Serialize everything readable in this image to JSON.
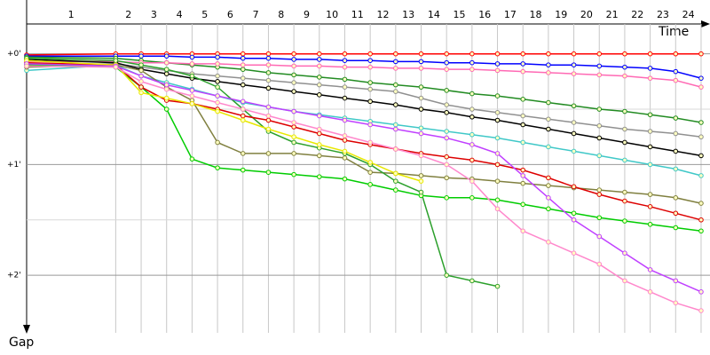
{
  "chart_data": {
    "type": "line",
    "x_label": "Time",
    "y_label": "Gap",
    "lap_labels": [
      1,
      2,
      3,
      4,
      5,
      6,
      7,
      8,
      9,
      10,
      11,
      12,
      13,
      14,
      15,
      16,
      17,
      18,
      19,
      20,
      21,
      22,
      23,
      24
    ],
    "x": [
      -2.5,
      1,
      2,
      3,
      4,
      5,
      6,
      7,
      8,
      9,
      10,
      11,
      12,
      13,
      14,
      15,
      16,
      17,
      18,
      19,
      20,
      21,
      22,
      23,
      24
    ],
    "xlim": [
      -2.5,
      24.35
    ],
    "xticks": [
      1,
      2,
      3,
      4,
      5,
      6,
      7,
      8,
      9,
      10,
      11,
      12,
      13,
      14,
      15,
      16,
      17,
      18,
      19,
      20,
      21,
      22,
      23,
      24
    ],
    "ylim": [
      -0.27,
      2.52
    ],
    "yticks": [
      {
        "value": 0,
        "label": "+0'"
      },
      {
        "value": 1,
        "label": "+1'"
      },
      {
        "value": 2,
        "label": "+2'"
      }
    ],
    "minor_yticks": [
      0.5,
      1.5
    ],
    "grid": true,
    "series": [
      {
        "color": "#ff0000",
        "values": [
          0.01,
          0,
          0,
          0,
          0,
          0,
          0,
          0,
          0,
          0,
          0,
          0,
          0,
          0,
          0,
          0,
          0,
          0,
          0,
          0,
          0,
          0,
          0,
          0,
          0
        ]
      },
      {
        "color": "#0000ff",
        "values": [
          0.02,
          0.02,
          0.02,
          0.02,
          0.03,
          0.03,
          0.04,
          0.04,
          0.05,
          0.05,
          0.06,
          0.06,
          0.07,
          0.07,
          0.08,
          0.08,
          0.09,
          0.09,
          0.1,
          0.1,
          0.11,
          0.12,
          0.13,
          0.16,
          0.22
        ]
      },
      {
        "color": "#228b22",
        "values": [
          0.03,
          0.04,
          0.06,
          0.08,
          0.1,
          0.12,
          0.14,
          0.17,
          0.19,
          0.21,
          0.23,
          0.26,
          0.28,
          0.3,
          0.33,
          0.36,
          0.38,
          0.41,
          0.44,
          0.47,
          0.5,
          0.52,
          0.55,
          0.58,
          0.62
        ]
      },
      {
        "color": "#ff69b4",
        "values": [
          0.07,
          0.07,
          0.08,
          0.08,
          0.09,
          0.09,
          0.1,
          0.1,
          0.11,
          0.11,
          0.12,
          0.12,
          0.13,
          0.13,
          0.14,
          0.14,
          0.15,
          0.16,
          0.17,
          0.18,
          0.19,
          0.2,
          0.22,
          0.24,
          0.3
        ]
      },
      {
        "color": "#909090",
        "values": [
          0.1,
          0.09,
          0.12,
          0.15,
          0.18,
          0.2,
          0.22,
          0.24,
          0.26,
          0.28,
          0.3,
          0.32,
          0.34,
          0.4,
          0.46,
          0.5,
          0.53,
          0.56,
          0.59,
          0.62,
          0.65,
          0.68,
          0.7,
          0.72,
          0.75
        ]
      },
      {
        "color": "#000000",
        "values": [
          0.05,
          0.08,
          0.14,
          0.18,
          0.22,
          0.25,
          0.28,
          0.31,
          0.34,
          0.37,
          0.4,
          0.43,
          0.46,
          0.5,
          0.53,
          0.57,
          0.6,
          0.64,
          0.68,
          0.72,
          0.76,
          0.8,
          0.84,
          0.88,
          0.92
        ]
      },
      {
        "color": "#40c8c8",
        "values": [
          0.15,
          0.1,
          0.2,
          0.26,
          0.32,
          0.38,
          0.44,
          0.48,
          0.52,
          0.55,
          0.58,
          0.61,
          0.64,
          0.67,
          0.7,
          0.73,
          0.76,
          0.8,
          0.84,
          0.88,
          0.92,
          0.96,
          1.0,
          1.04,
          1.1
        ]
      },
      {
        "color": "#808040",
        "values": [
          0.12,
          0.1,
          0.15,
          0.3,
          0.42,
          0.8,
          0.9,
          0.9,
          0.9,
          0.92,
          0.94,
          1.07,
          1.08,
          1.1,
          1.12,
          1.13,
          1.15,
          1.17,
          1.19,
          1.21,
          1.23,
          1.25,
          1.27,
          1.3,
          1.35
        ]
      },
      {
        "color": "#00cc00",
        "values": [
          0.1,
          0.12,
          0.3,
          0.5,
          0.95,
          1.03,
          1.05,
          1.07,
          1.09,
          1.11,
          1.13,
          1.18,
          1.23,
          1.28,
          1.3,
          1.3,
          1.32,
          1.36,
          1.4,
          1.44,
          1.48,
          1.51,
          1.54,
          1.57,
          1.6
        ]
      },
      {
        "color": "#2ca02c",
        "values": [
          0.04,
          0.06,
          0.1,
          0.14,
          0.2,
          0.3,
          0.5,
          0.7,
          0.8,
          0.85,
          0.9,
          1.0,
          1.15,
          1.25,
          2.0,
          2.05,
          2.1,
          null,
          null,
          null,
          null,
          null,
          null,
          null,
          null
        ]
      },
      {
        "color": "#dd0000",
        "values": [
          0.08,
          0.1,
          0.3,
          0.42,
          0.45,
          0.5,
          0.56,
          0.6,
          0.66,
          0.72,
          0.78,
          0.82,
          0.86,
          0.9,
          0.93,
          0.96,
          1.0,
          1.05,
          1.12,
          1.2,
          1.27,
          1.33,
          1.38,
          1.44,
          1.5
        ]
      },
      {
        "color": "#e8e800",
        "values": [
          0.06,
          0.1,
          0.35,
          0.4,
          0.45,
          0.52,
          0.6,
          0.68,
          0.75,
          0.82,
          0.88,
          0.98,
          1.08,
          1.15,
          null,
          null,
          null,
          null,
          null,
          null,
          null,
          null,
          null,
          null,
          null
        ]
      },
      {
        "color": "#c040ff",
        "values": [
          0.09,
          0.11,
          0.2,
          0.28,
          0.33,
          0.38,
          0.43,
          0.48,
          0.52,
          0.56,
          0.6,
          0.64,
          0.68,
          0.72,
          0.76,
          0.82,
          0.9,
          1.1,
          1.3,
          1.5,
          1.65,
          1.8,
          1.95,
          2.05,
          2.15
        ]
      },
      {
        "color": "#ff88cc",
        "values": [
          0.11,
          0.12,
          0.25,
          0.32,
          0.38,
          0.44,
          0.5,
          0.56,
          0.62,
          0.68,
          0.74,
          0.8,
          0.86,
          0.92,
          1.0,
          1.15,
          1.4,
          1.6,
          1.7,
          1.8,
          1.9,
          2.05,
          2.15,
          2.25,
          2.32
        ]
      }
    ]
  }
}
